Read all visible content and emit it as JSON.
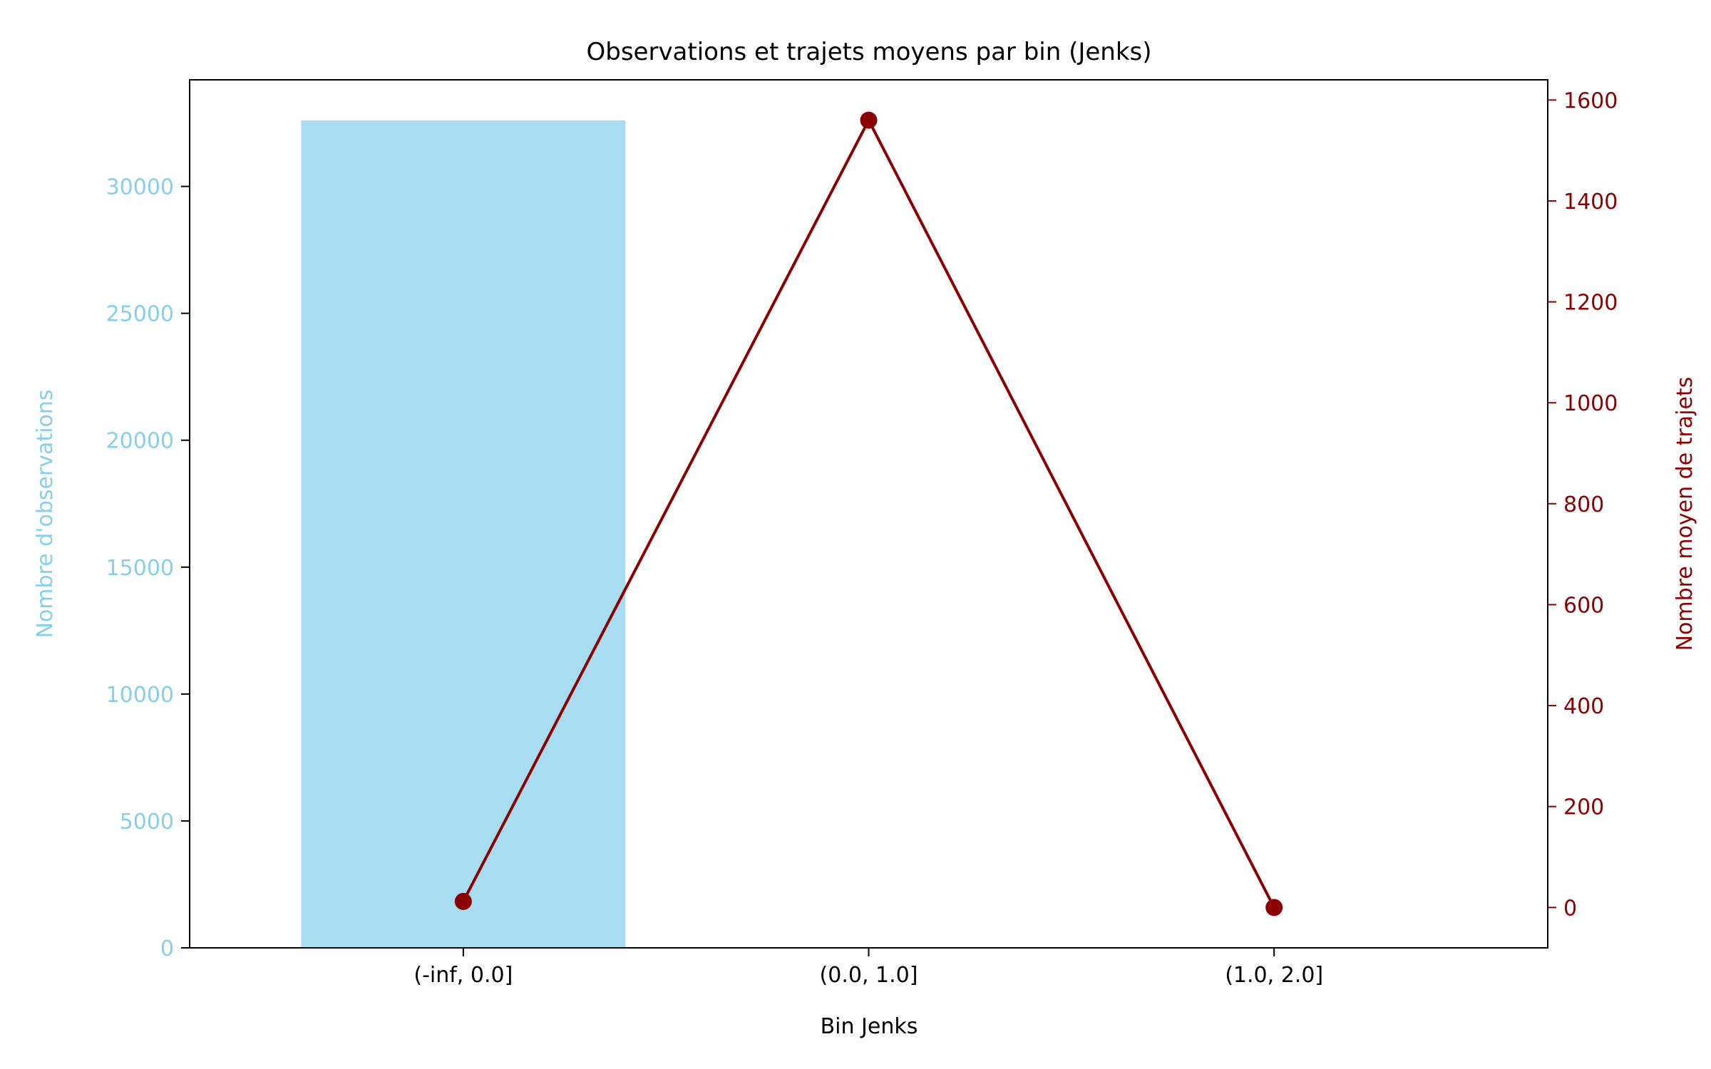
{
  "chart_data": {
    "type": "bar",
    "title": "Observations et trajets moyens par bin (Jenks)",
    "xlabel": "Bin Jenks",
    "categories": [
      "(-inf, 0.0]",
      "(0.0, 1.0]",
      "(1.0, 2.0]"
    ],
    "bar_series": {
      "axis": "left",
      "ylabel": "Nombre d'observations",
      "values": [
        32600,
        0,
        0
      ],
      "ylim": [
        0,
        34200
      ],
      "ticks": [
        0,
        5000,
        10000,
        15000,
        20000,
        25000,
        30000
      ],
      "color": "#87ceeb"
    },
    "line_series": {
      "axis": "right",
      "ylabel": "Nombre moyen de trajets",
      "values": [
        12,
        1560,
        0
      ],
      "ylim": [
        -80,
        1640
      ],
      "ticks": [
        0,
        200,
        400,
        600,
        800,
        1000,
        1200,
        1400,
        1600
      ],
      "color": "#8b0000",
      "marker": "circle"
    },
    "grid": false,
    "legend": false
  }
}
